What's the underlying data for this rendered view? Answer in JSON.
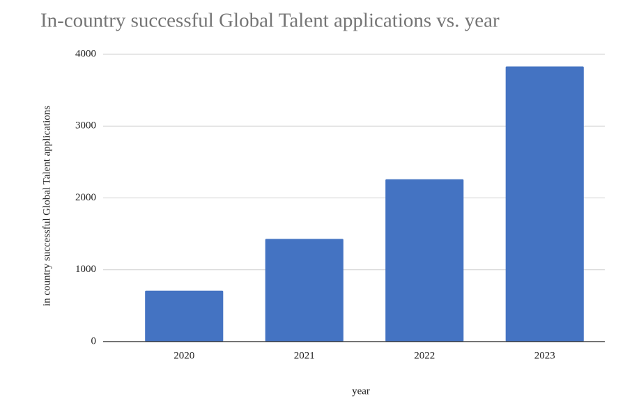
{
  "chart_data": {
    "type": "bar",
    "title": "In-country successful Global Talent applications vs. year",
    "x_label": "year",
    "y_label": "in country successful Global Talent applications",
    "categories": [
      "2020",
      "2021",
      "2022",
      "2023"
    ],
    "values": [
      710,
      1430,
      2260,
      3830
    ],
    "color": "#4473c2",
    "ylim": [
      0,
      4000
    ],
    "yticks": [
      0,
      1000,
      2000,
      3000,
      4000
    ],
    "grid": true
  }
}
